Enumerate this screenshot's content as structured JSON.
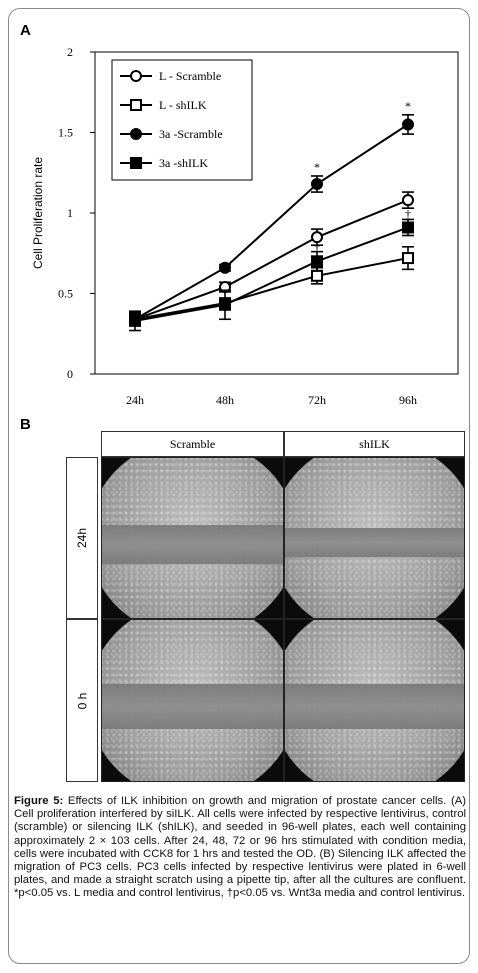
{
  "panel_a": {
    "letter": "A",
    "chart_data": {
      "type": "line",
      "ylabel": "Cell Proliferation rate",
      "xlabel": "",
      "categories": [
        "24h",
        "48h",
        "72h",
        "96h"
      ],
      "ylim": [
        0,
        2
      ],
      "yticks": [
        "0",
        "0.5",
        "1",
        "1.5",
        "2"
      ],
      "series": [
        {
          "name": "L - Scramble",
          "marker": "open-circle",
          "values": [
            0.34,
            0.54,
            0.85,
            1.08
          ],
          "errors": [
            0.04,
            0.03,
            0.05,
            0.05
          ]
        },
        {
          "name": "L - shILK",
          "marker": "open-square",
          "values": [
            0.34,
            0.44,
            0.61,
            0.72
          ],
          "errors": [
            0.04,
            0.03,
            0.05,
            0.07
          ]
        },
        {
          "name": "3a -Scramble",
          "marker": "filled-circle",
          "values": [
            0.34,
            0.66,
            1.18,
            1.55
          ],
          "errors": [
            0.04,
            0.02,
            0.05,
            0.06
          ]
        },
        {
          "name": "3a -shILK",
          "marker": "filled-square",
          "values": [
            0.33,
            0.43,
            0.7,
            0.91
          ],
          "errors": [
            0.06,
            0.09,
            0.06,
            0.05
          ]
        }
      ],
      "annotations": [
        {
          "text": "*",
          "category": "72h",
          "value": 1.26
        },
        {
          "text": "*",
          "category": "96h",
          "value": 1.64
        },
        {
          "text": "†",
          "category": "72h",
          "value": 0.76
        },
        {
          "text": "†",
          "category": "96h",
          "value": 0.97
        }
      ],
      "legend_position": "top-left"
    }
  },
  "panel_b": {
    "letter": "B",
    "columns": [
      "Scramble",
      "shILK"
    ],
    "rows": [
      "24h",
      "0 h"
    ]
  },
  "caption": {
    "label": "Figure 5:",
    "text": " Effects of ILK inhibition on growth and migration of prostate cancer cells. (A) Cell proliferation interfered by siILK. All cells were infected by respective lentivirus, control (scramble) or silencing ILK (shILK), and seeded in 96-well plates, each well containing approximately 2 × 103 cells. After 24, 48, 72 or 96 hrs stimulated with condition media, cells were incubated with CCK8 for 1 hrs and tested the OD. (B) Silencing ILK affected the migration of PC3 cells. PC3 cells infected by respective lentivirus were plated in 6-well plates, and made a straight scratch using a pipette tip, after all the cultures are confluent. *p<0.05 vs. L media and control lentivirus, †p<0.05 vs. Wnt3a media and control lentivirus."
  }
}
